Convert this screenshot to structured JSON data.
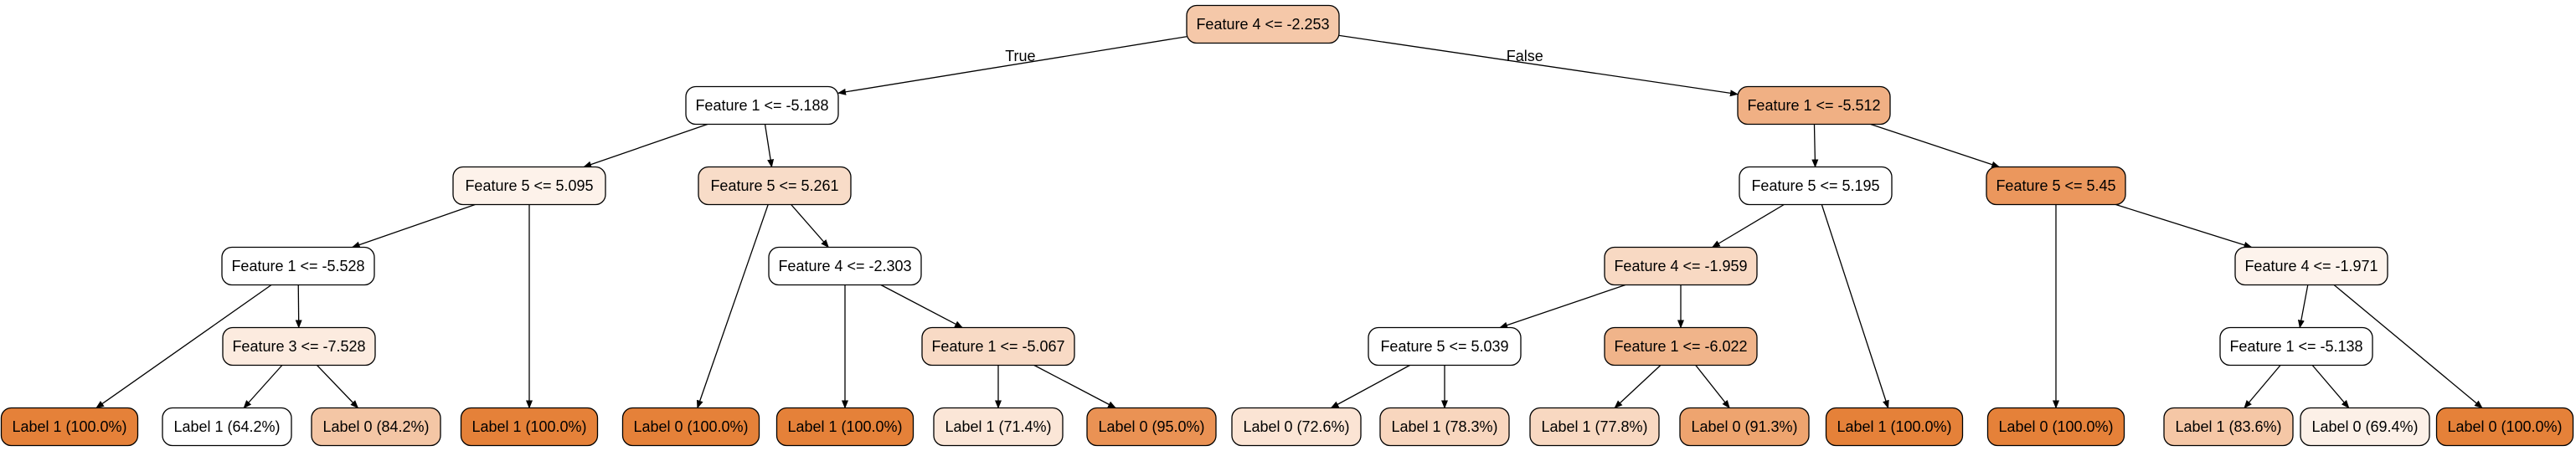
{
  "tree": {
    "nodes": [
      {
        "id": "n0",
        "label": "Feature 4 <= -2.253",
        "fill": "#f5c8a9"
      },
      {
        "id": "n1",
        "label": "Feature 1 <= -5.188",
        "fill": "#ffffff"
      },
      {
        "id": "n2",
        "label": "Feature 1 <= -5.512",
        "fill": "#f0b084"
      },
      {
        "id": "n3",
        "label": "Feature 5 <= 5.095",
        "fill": "#fdf2ea"
      },
      {
        "id": "n4",
        "label": "Feature 5 <= 5.261",
        "fill": "#f8dcc8"
      },
      {
        "id": "n5",
        "label": "Feature 5 <= 5.195",
        "fill": "#ffffff"
      },
      {
        "id": "n6",
        "label": "Feature 5 <= 5.45",
        "fill": "#eb975d"
      },
      {
        "id": "n7",
        "label": "Feature 1 <= -5.528",
        "fill": "#ffffff"
      },
      {
        "id": "n8",
        "label": "Feature 4 <= -2.303",
        "fill": "#ffffff"
      },
      {
        "id": "n9",
        "label": "Feature 4 <= -1.959",
        "fill": "#f8d9c3"
      },
      {
        "id": "n10",
        "label": "Feature 4 <= -1.971",
        "fill": "#fdf3ec"
      },
      {
        "id": "n11",
        "label": "Feature 3 <= -7.528",
        "fill": "#fcebdf"
      },
      {
        "id": "n12",
        "label": "Feature 1 <= -5.067",
        "fill": "#f8dac5"
      },
      {
        "id": "n13",
        "label": "Feature 5 <= 5.039",
        "fill": "#ffffff"
      },
      {
        "id": "n14",
        "label": "Feature 1 <= -6.022",
        "fill": "#f0b48a"
      },
      {
        "id": "n15",
        "label": "Feature 1 <= -5.138",
        "fill": "#ffffff"
      },
      {
        "id": "n16",
        "label": "Label 1 (100.0%)",
        "fill": "#e58139"
      },
      {
        "id": "n17",
        "label": "Label 1 (64.2%)",
        "fill": "#ffffff"
      },
      {
        "id": "n18",
        "label": "Label 0 (84.2%)",
        "fill": "#f4c6a5"
      },
      {
        "id": "n19",
        "label": "Label 1 (100.0%)",
        "fill": "#e58139"
      },
      {
        "id": "n20",
        "label": "Label 0 (100.0%)",
        "fill": "#e58139"
      },
      {
        "id": "n21",
        "label": "Label 1 (100.0%)",
        "fill": "#e58139"
      },
      {
        "id": "n22",
        "label": "Label 1 (71.4%)",
        "fill": "#fbe6d7"
      },
      {
        "id": "n23",
        "label": "Label 0 (95.0%)",
        "fill": "#ea9254"
      },
      {
        "id": "n24",
        "label": "Label 0 (72.6%)",
        "fill": "#fbe4d4"
      },
      {
        "id": "n25",
        "label": "Label 1 (78.3%)",
        "fill": "#f8d6be"
      },
      {
        "id": "n26",
        "label": "Label 1 (77.8%)",
        "fill": "#f8d8c1"
      },
      {
        "id": "n27",
        "label": "Label 0 (91.3%)",
        "fill": "#eea46f"
      },
      {
        "id": "n28",
        "label": "Label 1 (100.0%)",
        "fill": "#e58139"
      },
      {
        "id": "n29",
        "label": "Label 0 (100.0%)",
        "fill": "#e58139"
      },
      {
        "id": "n30",
        "label": "Label 1 (83.6%)",
        "fill": "#f5c7a6"
      },
      {
        "id": "n31",
        "label": "Label 0 (69.4%)",
        "fill": "#fcf0e7"
      },
      {
        "id": "n32",
        "label": "Label 0 (100.0%)",
        "fill": "#e58139"
      }
    ],
    "edges": [
      {
        "from": "n0",
        "to": "n1",
        "label": "True"
      },
      {
        "from": "n0",
        "to": "n2",
        "label": "False"
      },
      {
        "from": "n1",
        "to": "n3",
        "label": ""
      },
      {
        "from": "n1",
        "to": "n4",
        "label": ""
      },
      {
        "from": "n2",
        "to": "n5",
        "label": ""
      },
      {
        "from": "n2",
        "to": "n6",
        "label": ""
      },
      {
        "from": "n3",
        "to": "n7",
        "label": ""
      },
      {
        "from": "n3",
        "to": "n19",
        "label": ""
      },
      {
        "from": "n4",
        "to": "n20",
        "label": ""
      },
      {
        "from": "n4",
        "to": "n8",
        "label": ""
      },
      {
        "from": "n5",
        "to": "n9",
        "label": ""
      },
      {
        "from": "n5",
        "to": "n28",
        "label": ""
      },
      {
        "from": "n6",
        "to": "n29",
        "label": ""
      },
      {
        "from": "n6",
        "to": "n10",
        "label": ""
      },
      {
        "from": "n7",
        "to": "n16",
        "label": ""
      },
      {
        "from": "n7",
        "to": "n11",
        "label": ""
      },
      {
        "from": "n8",
        "to": "n21",
        "label": ""
      },
      {
        "from": "n8",
        "to": "n12",
        "label": ""
      },
      {
        "from": "n9",
        "to": "n13",
        "label": ""
      },
      {
        "from": "n9",
        "to": "n14",
        "label": ""
      },
      {
        "from": "n10",
        "to": "n15",
        "label": ""
      },
      {
        "from": "n10",
        "to": "n32",
        "label": ""
      },
      {
        "from": "n11",
        "to": "n17",
        "label": ""
      },
      {
        "from": "n11",
        "to": "n18",
        "label": ""
      },
      {
        "from": "n12",
        "to": "n22",
        "label": ""
      },
      {
        "from": "n12",
        "to": "n23",
        "label": ""
      },
      {
        "from": "n13",
        "to": "n24",
        "label": ""
      },
      {
        "from": "n13",
        "to": "n25",
        "label": ""
      },
      {
        "from": "n14",
        "to": "n26",
        "label": ""
      },
      {
        "from": "n14",
        "to": "n27",
        "label": ""
      },
      {
        "from": "n15",
        "to": "n30",
        "label": ""
      },
      {
        "from": "n15",
        "to": "n31",
        "label": ""
      }
    ]
  }
}
